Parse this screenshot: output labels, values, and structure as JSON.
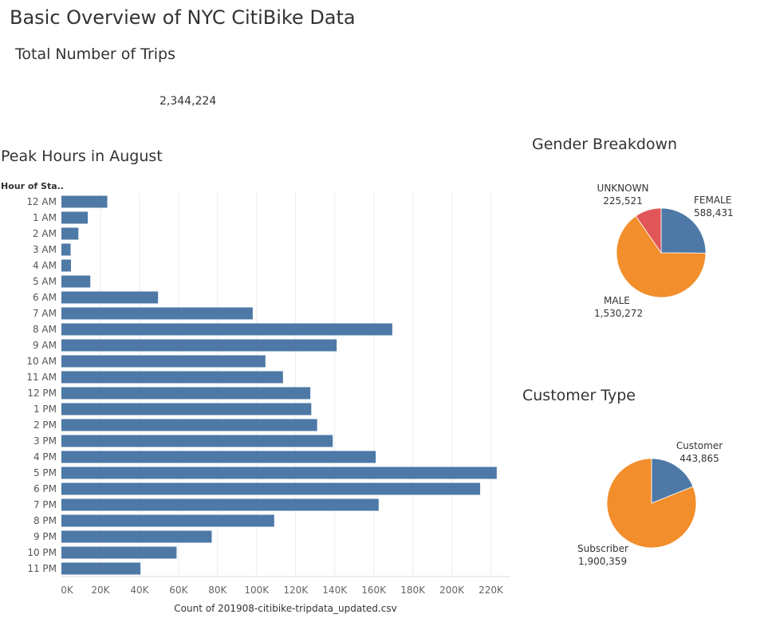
{
  "header": {
    "title": "Basic Overview of NYC CitiBike Data"
  },
  "total_trips": {
    "title": "Total Number of Trips",
    "value": "2,344,224"
  },
  "peak_hours": {
    "title": "Peak Hours in August"
  },
  "gender": {
    "title": "Gender Breakdown"
  },
  "customer": {
    "title": "Customer Type"
  },
  "colors": {
    "blue": "#4e79a7",
    "orange": "#f28e2b",
    "red": "#e15759",
    "grid": "#ececec"
  },
  "chart_data": [
    {
      "type": "bar",
      "orientation": "horizontal",
      "title": "Peak Hours in August",
      "ylabel": "Hour of Sta..",
      "xlabel": "Count of 201908-citibike-tripdata_updated.csv",
      "categories": [
        "12 AM",
        "1 AM",
        "2 AM",
        "3 AM",
        "4 AM",
        "5 AM",
        "6 AM",
        "7 AM",
        "8 AM",
        "9 AM",
        "10 AM",
        "11 AM",
        "12 PM",
        "1 PM",
        "2 PM",
        "3 PM",
        "4 PM",
        "5 PM",
        "6 PM",
        "7 PM",
        "8 PM",
        "9 PM",
        "10 PM",
        "11 PM"
      ],
      "values": [
        23500,
        13500,
        8700,
        4700,
        4900,
        14800,
        49500,
        98000,
        169500,
        141000,
        104500,
        113500,
        127500,
        128000,
        131000,
        139000,
        161000,
        223000,
        214500,
        162500,
        109000,
        77000,
        59000,
        40500
      ],
      "xlim": [
        0,
        230000
      ],
      "ticks": [
        0,
        20000,
        40000,
        60000,
        80000,
        100000,
        120000,
        140000,
        160000,
        180000,
        200000,
        220000
      ],
      "tick_labels": [
        "0K",
        "20K",
        "40K",
        "60K",
        "80K",
        "100K",
        "120K",
        "140K",
        "160K",
        "180K",
        "200K",
        "220K"
      ],
      "grid": true
    },
    {
      "type": "pie",
      "title": "Gender Breakdown",
      "slices": [
        {
          "label": "FEMALE",
          "value": 588431,
          "value_label": "588,431",
          "color": "#4e79a7"
        },
        {
          "label": "MALE",
          "value": 1530272,
          "value_label": "1,530,272",
          "color": "#f28e2b"
        },
        {
          "label": "UNKNOWN",
          "value": 225521,
          "value_label": "225,521",
          "color": "#e15759"
        }
      ]
    },
    {
      "type": "pie",
      "title": "Customer Type",
      "slices": [
        {
          "label": "Customer",
          "value": 443865,
          "value_label": "443,865",
          "color": "#4e79a7"
        },
        {
          "label": "Subscriber",
          "value": 1900359,
          "value_label": "1,900,359",
          "color": "#f28e2b"
        }
      ]
    }
  ]
}
